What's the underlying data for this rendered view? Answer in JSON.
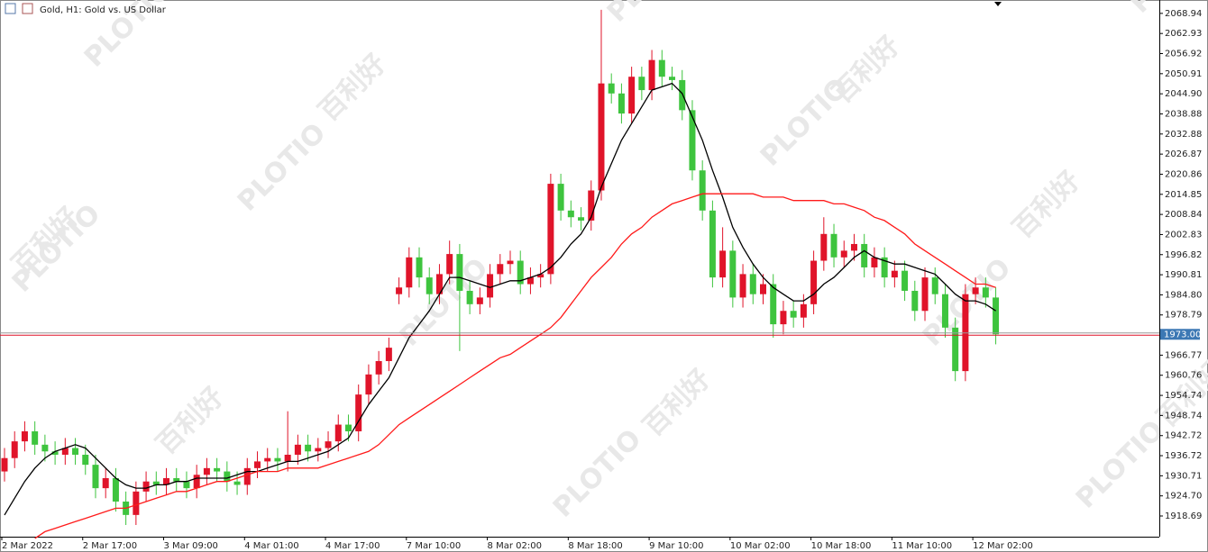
{
  "chart_data": {
    "type": "candlestick",
    "title": "Gold, H1:  Gold vs. US Dollar",
    "categories": [
      "2 Mar 2022",
      null,
      null,
      null,
      null,
      null,
      null,
      null,
      "2 Mar 17:00",
      null,
      null,
      null,
      null,
      null,
      null,
      null,
      "3 Mar 09:00",
      null,
      null,
      null,
      null,
      null,
      null,
      null,
      "4 Mar 01:00",
      null,
      null,
      null,
      null,
      null,
      null,
      null,
      "4 Mar 17:00",
      null,
      null,
      null,
      null,
      null,
      null,
      null,
      "7 Mar 10:00",
      null,
      null,
      null,
      null,
      null,
      null,
      null,
      "8 Mar 02:00",
      null,
      null,
      null,
      null,
      null,
      null,
      null,
      "8 Mar 18:00",
      null,
      null,
      null,
      null,
      null,
      null,
      null,
      "9 Mar 10:00",
      null,
      null,
      null,
      null,
      null,
      null,
      null,
      "10 Mar 02:00",
      null,
      null,
      null,
      null,
      null,
      null,
      null,
      "10 Mar 18:00",
      null,
      null,
      null,
      null,
      null,
      null,
      null,
      "11 Mar 10:00",
      null,
      null,
      null,
      null,
      null,
      null,
      null,
      "12 Mar 02:00",
      null,
      null
    ],
    "open": [
      1932,
      1936,
      1941,
      1944,
      1940,
      1938,
      1937,
      1939,
      1937,
      1934,
      1927,
      1930,
      1923,
      1919,
      1926,
      1929,
      1928,
      1930,
      1929,
      1927,
      1931,
      1933,
      1932,
      1929,
      1928,
      1933,
      1935,
      1936,
      1935,
      1937,
      1940,
      1938,
      1939,
      1941,
      1946,
      1944,
      1955,
      1961,
      1965,
      1985,
      1987,
      1996,
      1990,
      1985,
      1991,
      1997,
      1986,
      1982,
      1984,
      1991,
      1994,
      1995,
      1988,
      1990,
      1991,
      2018,
      2010,
      2008,
      2007,
      2016,
      2048,
      2045,
      2039,
      2050,
      2046,
      2055,
      2050,
      2049,
      2040,
      2022,
      2010,
      1990,
      1998,
      1984,
      1991,
      1985,
      1988,
      1976,
      1980,
      1978,
      1982,
      1995,
      2003,
      1996,
      1998,
      2000,
      1993,
      1996,
      1990,
      1992,
      1986,
      1980,
      1990,
      1985,
      1975,
      1962,
      1985,
      1987,
      1984
    ],
    "high": [
      1939,
      1944,
      1947,
      1947,
      1943,
      1941,
      1942,
      1942,
      1940,
      1937,
      1933,
      1933,
      1926,
      1929,
      1932,
      1932,
      1933,
      1933,
      1932,
      1934,
      1936,
      1936,
      1935,
      1932,
      1936,
      1938,
      1939,
      1939,
      1950,
      1943,
      1943,
      1942,
      1944,
      1949,
      1949,
      1958,
      1964,
      1968,
      1972,
      1990,
      1999,
      1999,
      1993,
      1994,
      2001,
      2000,
      1989,
      1987,
      1994,
      1997,
      1998,
      1998,
      1993,
      1994,
      2021,
      2021,
      2013,
      2011,
      2019,
      2070,
      2051,
      2048,
      2053,
      2053,
      2058,
      2058,
      2053,
      2052,
      2043,
      2025,
      2013,
      2005,
      2001,
      1994,
      1994,
      1991,
      1991,
      1983,
      1983,
      1985,
      1998,
      2008,
      2006,
      2001,
      2003,
      2003,
      1999,
      1999,
      1995,
      1995,
      1989,
      1993,
      1993,
      1988,
      1978,
      1988,
      1990,
      1990,
      1987
    ],
    "low": [
      1929,
      1933,
      1938,
      1937,
      1935,
      1934,
      1934,
      1934,
      1931,
      1924,
      1924,
      1920,
      1916,
      1916,
      1923,
      1925,
      1925,
      1926,
      1924,
      1924,
      1928,
      1929,
      1926,
      1925,
      1925,
      1930,
      1932,
      1932,
      1932,
      1934,
      1935,
      1935,
      1936,
      1938,
      1941,
      1941,
      1952,
      1958,
      1962,
      1982,
      1984,
      1987,
      1982,
      1982,
      1988,
      1968,
      1979,
      1979,
      1981,
      1988,
      1991,
      1985,
      1985,
      1987,
      1988,
      2007,
      2005,
      2004,
      2004,
      2013,
      2042,
      2036,
      2036,
      2043,
      2043,
      2047,
      2046,
      2037,
      2019,
      2007,
      1987,
      1987,
      1981,
      1981,
      1982,
      1982,
      1972,
      1973,
      1975,
      1975,
      1979,
      1992,
      1993,
      1993,
      1995,
      1990,
      1990,
      1987,
      1987,
      1983,
      1977,
      1977,
      1982,
      1972,
      1959,
      1959,
      1982,
      1981,
      1970
    ],
    "close": [
      1936,
      1941,
      1944,
      1940,
      1938,
      1937,
      1939,
      1937,
      1934,
      1927,
      1930,
      1923,
      1919,
      1926,
      1929,
      1928,
      1930,
      1929,
      1927,
      1931,
      1933,
      1932,
      1929,
      1928,
      1933,
      1935,
      1936,
      1935,
      1937,
      1940,
      1938,
      1939,
      1941,
      1946,
      1944,
      1955,
      1961,
      1965,
      1969,
      1987,
      1996,
      1990,
      1985,
      1991,
      1997,
      1986,
      1982,
      1984,
      1991,
      1994,
      1995,
      1988,
      1990,
      1991,
      2018,
      2010,
      2008,
      2007,
      2016,
      2048,
      2045,
      2039,
      2050,
      2046,
      2055,
      2050,
      2049,
      2040,
      2022,
      2010,
      1990,
      1998,
      1984,
      1991,
      1985,
      1988,
      1976,
      1980,
      1978,
      1982,
      1995,
      2003,
      1996,
      1998,
      2000,
      1993,
      1996,
      1990,
      1992,
      1986,
      1980,
      1990,
      1985,
      1975,
      1962,
      1985,
      1987,
      1984,
      1973
    ],
    "up_color": "#e0142a",
    "down_color": "#3ec43e",
    "series": [
      {
        "color": "#000000",
        "values": [
          1919,
          1924,
          1929,
          1933,
          1936,
          1938,
          1939,
          1940,
          1939,
          1936,
          1933,
          1930,
          1928,
          1927,
          1927,
          1928,
          1928,
          1929,
          1929,
          1930,
          1930,
          1930,
          1930,
          1931,
          1932,
          1932,
          1933,
          1934,
          1935,
          1935,
          1936,
          1937,
          1938,
          1940,
          1942,
          1947,
          1952,
          1956,
          1960,
          1966,
          1972,
          1976,
          1980,
          1985,
          1990,
          1990,
          1989,
          1988,
          1987,
          1988,
          1989,
          1989,
          1990,
          1991,
          1993,
          1996,
          2000,
          2003,
          2008,
          2017,
          2024,
          2031,
          2036,
          2041,
          2046,
          2047,
          2048,
          2045,
          2038,
          2031,
          2022,
          2014,
          2005,
          1999,
          1994,
          1990,
          1987,
          1985,
          1983,
          1983,
          1985,
          1988,
          1990,
          1993,
          1996,
          1998,
          1996,
          1995,
          1994,
          1994,
          1993,
          1992,
          1991,
          1988,
          1985,
          1983,
          1983,
          1982,
          1980
        ]
      },
      {
        "color": "#ff1a1a",
        "values": [
          null,
          null,
          null,
          1912,
          1914,
          1915,
          1916,
          1917,
          1918,
          1919,
          1920,
          1921,
          1921,
          1922,
          1923,
          1924,
          1925,
          1926,
          1926,
          1927,
          1928,
          1929,
          1929,
          1930,
          1931,
          1932,
          1932,
          1932,
          1933,
          1933,
          1933,
          1933,
          1934,
          1935,
          1936,
          1937,
          1938,
          1940,
          1943,
          1946,
          1948,
          1950,
          1952,
          1954,
          1956,
          1958,
          1960,
          1962,
          1964,
          1966,
          1967,
          1969,
          1971,
          1973,
          1975,
          1978,
          1982,
          1986,
          1990,
          1993,
          1996,
          2000,
          2003,
          2005,
          2008,
          2010,
          2012,
          2013,
          2014,
          2015,
          2015,
          2015,
          2015,
          2015,
          2015,
          2014,
          2014,
          2014,
          2013,
          2013,
          2013,
          2013,
          2012,
          2012,
          2011,
          2010,
          2008,
          2007,
          2005,
          2003,
          2000,
          1998,
          1996,
          1994,
          1992,
          1990,
          1988,
          1988,
          1987
        ]
      }
    ],
    "current_price": {
      "value": 1973,
      "label": "1973.00"
    },
    "ylim": [
      1912.5,
      2072.4
    ],
    "yticks": [
      2068.94,
      2062.93,
      2056.92,
      2050.91,
      {
        "value": 2044.9,
        "label": "2044.90"
      },
      2038.88,
      2032.88,
      2026.87,
      2020.86,
      2014.85,
      2008.84,
      2002.83,
      1996.82,
      1990.81,
      {
        "value": 1984.8,
        "label": "1984.80"
      },
      1978.79,
      1966.77,
      1960.76,
      1954.74,
      1948.74,
      1942.72,
      1936.72,
      1930.71,
      {
        "value": 1924.7,
        "label": "1924.70"
      },
      1918.69
    ],
    "watermark_texts": [
      "PLOTIO",
      "百利好"
    ]
  }
}
